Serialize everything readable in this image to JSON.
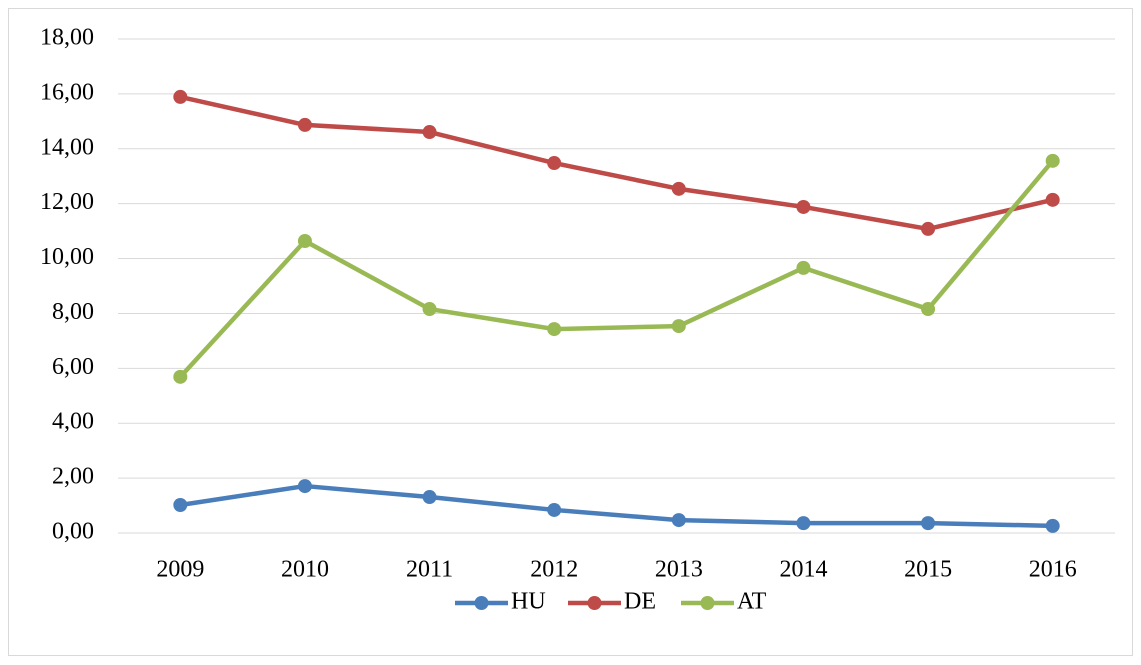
{
  "chart_data": {
    "type": "line",
    "categories": [
      "2009",
      "2010",
      "2011",
      "2012",
      "2013",
      "2014",
      "2015",
      "2016"
    ],
    "series": [
      {
        "name": "HU",
        "color": "#4a7ebb",
        "values": [
          1.02,
          1.71,
          1.31,
          0.84,
          0.47,
          0.36,
          0.36,
          0.26
        ]
      },
      {
        "name": "DE",
        "color": "#be4b48",
        "values": [
          15.89,
          14.87,
          14.61,
          13.48,
          12.54,
          11.88,
          11.08,
          12.14
        ]
      },
      {
        "name": "AT",
        "color": "#98b954",
        "values": [
          5.69,
          10.64,
          8.16,
          7.43,
          7.54,
          9.66,
          8.16,
          13.56
        ]
      }
    ],
    "ylim": [
      0,
      18
    ],
    "yticks": [
      {
        "value": 0,
        "label": "0,00"
      },
      {
        "value": 2,
        "label": "2,00"
      },
      {
        "value": 4,
        "label": "4,00"
      },
      {
        "value": 6,
        "label": "6,00"
      },
      {
        "value": 8,
        "label": "8,00"
      },
      {
        "value": 10,
        "label": "10,00"
      },
      {
        "value": 12,
        "label": "12,00"
      },
      {
        "value": 14,
        "label": "14,00"
      },
      {
        "value": 16,
        "label": "16,00"
      },
      {
        "value": 18,
        "label": "18,00"
      }
    ],
    "grid": true,
    "legend": "bottom"
  }
}
